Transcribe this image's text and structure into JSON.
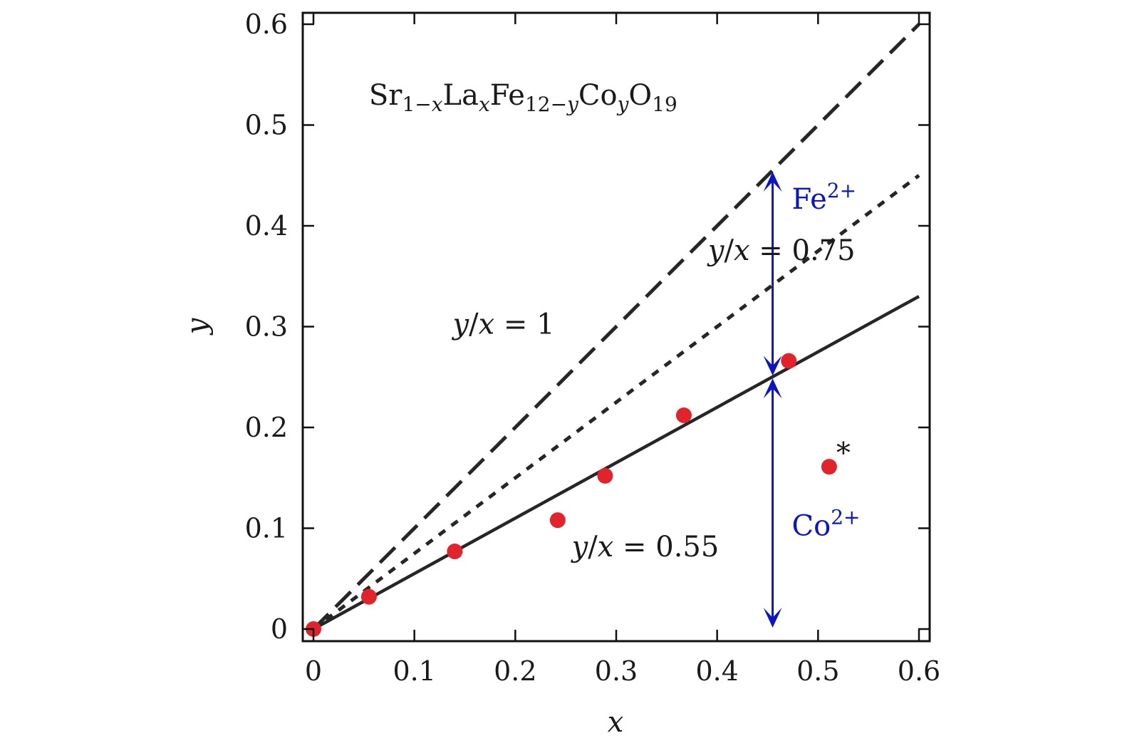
{
  "chart_data": {
    "type": "scatter",
    "title": "",
    "xlabel": "x",
    "ylabel": "y",
    "xlim": [
      0,
      0.6
    ],
    "ylim": [
      0,
      0.6
    ],
    "grid": false,
    "x_ticks": [
      0,
      0.1,
      0.2,
      0.3,
      0.4,
      0.5,
      0.6
    ],
    "x_tick_labels": [
      "0",
      "0.1",
      "0.2",
      "0.3",
      "0.4",
      "0.5",
      "0.6"
    ],
    "y_ticks": [
      0,
      0.1,
      0.2,
      0.3,
      0.4,
      0.5,
      0.6
    ],
    "y_tick_labels": [
      "0",
      "0.1",
      "0.2",
      "0.3",
      "0.4",
      "0.5",
      "0.6"
    ],
    "series": [
      {
        "name": "data",
        "kind": "points",
        "color": "#e3232c",
        "x": [
          0,
          0.055,
          0.14,
          0.242,
          0.289,
          0.367,
          0.471,
          0.511
        ],
        "y": [
          0,
          0.032,
          0.077,
          0.108,
          0.152,
          0.212,
          0.266,
          0.161
        ]
      },
      {
        "name": "y/x = 1",
        "kind": "line",
        "style": "dashed",
        "slope": 1,
        "x_range": [
          0,
          0.6
        ]
      },
      {
        "name": "y/x = 0.75",
        "kind": "line",
        "style": "dotted",
        "slope": 0.75,
        "x_range": [
          0,
          0.6
        ]
      },
      {
        "name": "y/x = 0.55",
        "kind": "line",
        "style": "solid",
        "slope": 0.55,
        "x_range": [
          0,
          0.6
        ]
      }
    ],
    "annotations": {
      "formula": {
        "parts": [
          {
            "text": "Sr",
            "role": "base"
          },
          {
            "text": "1−",
            "role": "sub"
          },
          {
            "text": "x",
            "role": "sub-italic"
          },
          {
            "text": "La",
            "role": "base"
          },
          {
            "text": "x",
            "role": "sub-italic"
          },
          {
            "text": "Fe",
            "role": "base"
          },
          {
            "text": "12−",
            "role": "sub"
          },
          {
            "text": "y",
            "role": "sub-italic"
          },
          {
            "text": "Co",
            "role": "base"
          },
          {
            "text": "y",
            "role": "sub-italic"
          },
          {
            "text": "O",
            "role": "base"
          },
          {
            "text": "19",
            "role": "sub"
          }
        ],
        "x": 0.055,
        "y": 0.52
      },
      "line_labels": [
        {
          "var1": "y",
          "slash": "/",
          "var2": "x",
          "rest": " = 1",
          "x": 0.138,
          "y": 0.293
        },
        {
          "var1": "y",
          "slash": "/",
          "var2": "x",
          "rest": " = 0.75",
          "x": 0.391,
          "y": 0.366
        },
        {
          "var1": "y",
          "slash": "/",
          "var2": "x",
          "rest": " = 0.55",
          "x": 0.256,
          "y": 0.072
        }
      ],
      "ion_labels": [
        {
          "base": "Fe",
          "sup": "2+",
          "color": "#0a14c8",
          "x": 0.474,
          "y": 0.417
        },
        {
          "base": "Co",
          "sup": "2+",
          "color": "#0a14c8",
          "x": 0.474,
          "y": 0.093
        }
      ],
      "arrow_color": "#0a14c8",
      "arrows": [
        {
          "x": 0.455,
          "y_from": 0.455,
          "y_to": 0.25,
          "label": "Fe2+"
        },
        {
          "x": 0.455,
          "y_from": 0.25,
          "y_to": 0,
          "label": "Co2+"
        }
      ],
      "marker": {
        "text": "*",
        "x": 0.518,
        "y": 0.165
      }
    }
  }
}
